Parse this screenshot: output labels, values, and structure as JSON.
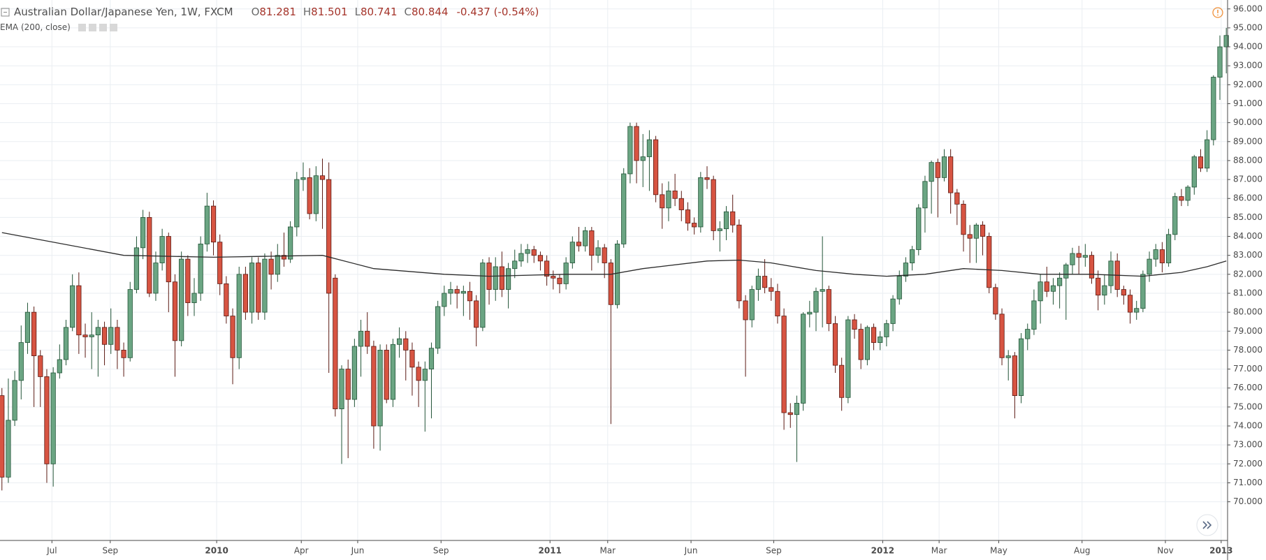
{
  "chart_data": {
    "type": "candlestick",
    "title": "Australian Dollar/Japanese Yen, 1W, FXCM",
    "ohlc_header": [
      {
        "label": "O",
        "value": "81.281"
      },
      {
        "label": "H",
        "value": "81.501"
      },
      {
        "label": "L",
        "value": "80.741"
      },
      {
        "label": "C",
        "value": "80.844"
      }
    ],
    "change": "-0.437 (-0.54%)",
    "up_color": "#6ba583",
    "up_border": "#225437",
    "down_color": "#d75442",
    "down_border": "#5b1a13",
    "xlim": [
      -0.3,
      191.2
    ],
    "ylim": [
      67.96,
      96.47
    ],
    "xticks": [
      {
        "value": 7.8,
        "label": "Jul"
      },
      {
        "value": 16.9,
        "label": "Sep"
      },
      {
        "value": 33.5,
        "label": "2010"
      },
      {
        "value": 46.7,
        "label": "Apr"
      },
      {
        "value": 55.5,
        "label": "Jun"
      },
      {
        "value": 68.5,
        "label": "Sep"
      },
      {
        "value": 85.5,
        "label": "2011"
      },
      {
        "value": 94.5,
        "label": "Mar"
      },
      {
        "value": 107.5,
        "label": "Jun"
      },
      {
        "value": 120.4,
        "label": "Sep"
      },
      {
        "value": 137.4,
        "label": "2012"
      },
      {
        "value": 146.2,
        "label": "Mar"
      },
      {
        "value": 155.5,
        "label": "May"
      },
      {
        "value": 168.5,
        "label": "Aug"
      },
      {
        "value": 181.5,
        "label": "Nov"
      },
      {
        "value": 190.2,
        "label": "2013"
      }
    ],
    "yticks": [
      {
        "value": 70,
        "label": "70.000"
      },
      {
        "value": 71,
        "label": "71.000"
      },
      {
        "value": 72,
        "label": "72.000"
      },
      {
        "value": 73,
        "label": "73.000"
      },
      {
        "value": 74,
        "label": "74.000"
      },
      {
        "value": 75,
        "label": "75.000"
      },
      {
        "value": 76,
        "label": "76.000"
      },
      {
        "value": 77,
        "label": "77.000"
      },
      {
        "value": 78,
        "label": "78.000"
      },
      {
        "value": 79,
        "label": "79.000"
      },
      {
        "value": 80,
        "label": "80.000"
      },
      {
        "value": 81,
        "label": "81.000"
      },
      {
        "value": 82,
        "label": "82.000"
      },
      {
        "value": 83,
        "label": "83.000"
      },
      {
        "value": 84,
        "label": "84.000"
      },
      {
        "value": 85,
        "label": "85.000"
      },
      {
        "value": 86,
        "label": "86.000"
      },
      {
        "value": 87,
        "label": "87.000"
      },
      {
        "value": 88,
        "label": "88.000"
      },
      {
        "value": 89,
        "label": "89.000"
      },
      {
        "value": 90,
        "label": "90.000"
      },
      {
        "value": 91,
        "label": "91.000"
      },
      {
        "value": 92,
        "label": "92.000"
      },
      {
        "value": 93,
        "label": "93.000"
      },
      {
        "value": 94,
        "label": "94.000"
      },
      {
        "value": 95,
        "label": "95.000"
      },
      {
        "value": 96,
        "label": "96.000"
      }
    ],
    "grid": true,
    "ohlc": [
      [
        75.6,
        76.0,
        70.6,
        71.3
      ],
      [
        71.3,
        76.5,
        71.0,
        74.3
      ],
      [
        74.3,
        76.9,
        74.0,
        76.4
      ],
      [
        76.4,
        79.3,
        75.4,
        78.4
      ],
      [
        78.4,
        80.5,
        77.8,
        80.0
      ],
      [
        80.0,
        80.3,
        75.0,
        77.7
      ],
      [
        77.7,
        78.0,
        75.0,
        76.6
      ],
      [
        76.6,
        77.0,
        71.0,
        72.0
      ],
      [
        72.0,
        77.1,
        70.8,
        76.8
      ],
      [
        76.8,
        78.3,
        76.5,
        77.5
      ],
      [
        77.5,
        79.6,
        77.2,
        79.2
      ],
      [
        79.2,
        82.0,
        79.0,
        81.4
      ],
      [
        81.4,
        82.1,
        77.8,
        78.8
      ],
      [
        78.8,
        79.4,
        77.6,
        78.7
      ],
      [
        78.7,
        80.0,
        77.0,
        78.8
      ],
      [
        78.8,
        79.6,
        76.6,
        79.2
      ],
      [
        79.2,
        79.5,
        77.2,
        78.3
      ],
      [
        78.3,
        80.2,
        77.8,
        79.2
      ],
      [
        79.2,
        79.6,
        77.0,
        78.0
      ],
      [
        78.0,
        78.4,
        76.6,
        77.6
      ],
      [
        77.6,
        81.6,
        77.4,
        81.2
      ],
      [
        81.2,
        84.0,
        81.0,
        83.4
      ],
      [
        83.4,
        85.4,
        82.8,
        85.0
      ],
      [
        85.0,
        85.3,
        80.8,
        81.0
      ],
      [
        81.0,
        83.2,
        80.6,
        82.6
      ],
      [
        82.6,
        84.4,
        82.2,
        84.0
      ],
      [
        84.0,
        84.2,
        80.0,
        81.6
      ],
      [
        81.6,
        82.0,
        76.6,
        78.5
      ],
      [
        78.5,
        83.2,
        78.2,
        82.8
      ],
      [
        82.8,
        83.0,
        79.8,
        80.5
      ],
      [
        80.5,
        81.8,
        79.8,
        81.0
      ],
      [
        81.0,
        84.0,
        80.6,
        83.6
      ],
      [
        83.6,
        86.3,
        83.2,
        85.6
      ],
      [
        85.6,
        85.9,
        83.0,
        83.7
      ],
      [
        83.7,
        84.1,
        80.9,
        81.5
      ],
      [
        81.5,
        81.9,
        79.4,
        79.8
      ],
      [
        79.8,
        80.2,
        76.2,
        77.6
      ],
      [
        77.6,
        82.4,
        77.0,
        82.0
      ],
      [
        82.0,
        82.4,
        79.6,
        80.0
      ],
      [
        80.0,
        82.9,
        79.4,
        82.6
      ],
      [
        82.6,
        82.9,
        79.6,
        80.0
      ],
      [
        80.0,
        83.1,
        79.6,
        82.8
      ],
      [
        82.8,
        83.2,
        81.2,
        82.0
      ],
      [
        82.0,
        83.6,
        81.6,
        83.0
      ],
      [
        83.0,
        84.2,
        82.4,
        82.8
      ],
      [
        82.8,
        84.8,
        82.6,
        84.5
      ],
      [
        84.5,
        87.4,
        84.0,
        87.0
      ],
      [
        87.0,
        87.9,
        86.4,
        87.1
      ],
      [
        87.1,
        87.6,
        84.9,
        85.2
      ],
      [
        85.2,
        87.7,
        84.8,
        87.2
      ],
      [
        87.2,
        88.1,
        84.4,
        87.0
      ],
      [
        87.0,
        87.9,
        76.8,
        81.0
      ],
      [
        81.8,
        82.0,
        74.5,
        74.9
      ],
      [
        74.9,
        77.2,
        72.0,
        77.0
      ],
      [
        77.0,
        77.5,
        72.3,
        75.4
      ],
      [
        75.4,
        78.6,
        75.0,
        78.2
      ],
      [
        78.2,
        79.6,
        76.6,
        79.0
      ],
      [
        79.0,
        80.0,
        77.8,
        78.2
      ],
      [
        78.2,
        78.5,
        72.8,
        74.0
      ],
      [
        74.0,
        78.3,
        72.7,
        78.0
      ],
      [
        78.0,
        78.3,
        75.2,
        75.4
      ],
      [
        75.4,
        78.6,
        75.0,
        78.3
      ],
      [
        78.3,
        79.2,
        77.6,
        78.6
      ],
      [
        78.6,
        79.0,
        76.4,
        78.0
      ],
      [
        78.0,
        78.4,
        75.6,
        77.1
      ],
      [
        77.1,
        77.4,
        75.0,
        76.4
      ],
      [
        76.4,
        77.4,
        73.7,
        77.0
      ],
      [
        77.0,
        78.4,
        74.4,
        78.1
      ],
      [
        78.1,
        80.6,
        77.8,
        80.3
      ],
      [
        80.3,
        81.4,
        79.8,
        81.0
      ],
      [
        81.0,
        81.6,
        80.4,
        81.2
      ],
      [
        81.2,
        81.4,
        80.2,
        81.0
      ],
      [
        81.0,
        81.4,
        79.8,
        81.1
      ],
      [
        81.1,
        81.6,
        79.6,
        80.6
      ],
      [
        80.6,
        80.9,
        78.2,
        79.2
      ],
      [
        79.2,
        82.8,
        79.0,
        82.6
      ],
      [
        82.6,
        82.9,
        80.4,
        81.2
      ],
      [
        81.2,
        82.9,
        80.6,
        82.4
      ],
      [
        82.4,
        83.2,
        80.8,
        81.2
      ],
      [
        81.2,
        82.6,
        80.2,
        82.3
      ],
      [
        82.3,
        83.3,
        81.8,
        82.7
      ],
      [
        82.7,
        83.6,
        82.4,
        83.1
      ],
      [
        83.1,
        83.6,
        82.6,
        83.3
      ],
      [
        83.3,
        83.5,
        82.6,
        83.0
      ],
      [
        83.0,
        83.2,
        82.2,
        82.7
      ],
      [
        82.7,
        83.0,
        81.4,
        81.9
      ],
      [
        81.9,
        82.2,
        81.2,
        81.8
      ],
      [
        81.8,
        82.0,
        81.0,
        81.5
      ],
      [
        81.5,
        82.9,
        81.2,
        82.6
      ],
      [
        82.6,
        84.0,
        82.3,
        83.7
      ],
      [
        83.7,
        84.5,
        83.2,
        83.5
      ],
      [
        83.5,
        84.5,
        83.2,
        84.3
      ],
      [
        84.3,
        84.5,
        82.2,
        83.0
      ],
      [
        83.0,
        83.8,
        82.6,
        83.4
      ],
      [
        83.4,
        83.6,
        81.8,
        82.6
      ],
      [
        82.6,
        82.8,
        74.1,
        80.4
      ],
      [
        80.4,
        83.8,
        80.2,
        83.6
      ],
      [
        83.6,
        87.6,
        83.4,
        87.3
      ],
      [
        87.3,
        90.0,
        86.8,
        89.8
      ],
      [
        89.8,
        90.0,
        86.8,
        88.0
      ],
      [
        88.0,
        89.4,
        86.6,
        88.2
      ],
      [
        88.2,
        89.6,
        86.4,
        89.1
      ],
      [
        89.1,
        89.3,
        85.8,
        86.2
      ],
      [
        86.2,
        86.8,
        84.4,
        85.5
      ],
      [
        85.5,
        86.9,
        84.8,
        86.4
      ],
      [
        86.4,
        87.3,
        85.6,
        86.0
      ],
      [
        86.0,
        86.4,
        84.8,
        85.4
      ],
      [
        85.4,
        85.8,
        84.3,
        84.7
      ],
      [
        84.7,
        85.0,
        84.1,
        84.5
      ],
      [
        84.5,
        87.4,
        84.2,
        87.1
      ],
      [
        87.1,
        87.7,
        86.5,
        87.0
      ],
      [
        87.0,
        87.2,
        83.8,
        84.3
      ],
      [
        84.3,
        84.8,
        83.2,
        84.4
      ],
      [
        84.4,
        85.6,
        83.8,
        85.3
      ],
      [
        85.3,
        86.2,
        84.2,
        84.6
      ],
      [
        84.6,
        84.9,
        80.2,
        80.6
      ],
      [
        80.6,
        80.9,
        76.6,
        79.6
      ],
      [
        79.6,
        81.4,
        79.2,
        81.2
      ],
      [
        81.2,
        82.3,
        80.6,
        81.9
      ],
      [
        81.9,
        82.8,
        81.0,
        81.3
      ],
      [
        81.3,
        81.8,
        80.6,
        81.1
      ],
      [
        81.1,
        81.5,
        79.4,
        79.8
      ],
      [
        79.8,
        80.2,
        73.8,
        74.7
      ],
      [
        74.7,
        75.2,
        73.9,
        74.6
      ],
      [
        74.6,
        75.6,
        72.1,
        75.2
      ],
      [
        75.2,
        80.0,
        74.8,
        79.9
      ],
      [
        79.9,
        80.6,
        79.2,
        80.0
      ],
      [
        80.0,
        81.3,
        79.0,
        81.1
      ],
      [
        81.1,
        84.0,
        79.2,
        81.2
      ],
      [
        81.2,
        81.4,
        79.0,
        79.4
      ],
      [
        79.4,
        79.8,
        76.8,
        77.2
      ],
      [
        77.2,
        77.6,
        74.8,
        75.5
      ],
      [
        75.5,
        79.8,
        75.2,
        79.6
      ],
      [
        79.6,
        79.9,
        78.6,
        79.1
      ],
      [
        79.1,
        79.4,
        77.0,
        77.5
      ],
      [
        77.5,
        79.3,
        77.2,
        79.2
      ],
      [
        79.2,
        79.4,
        78.0,
        78.4
      ],
      [
        78.4,
        79.0,
        78.0,
        78.7
      ],
      [
        78.7,
        79.6,
        78.2,
        79.4
      ],
      [
        79.4,
        80.9,
        79.0,
        80.7
      ],
      [
        80.7,
        82.2,
        80.4,
        81.9
      ],
      [
        81.9,
        82.9,
        81.6,
        82.6
      ],
      [
        82.6,
        83.5,
        82.2,
        83.3
      ],
      [
        83.3,
        85.7,
        83.0,
        85.5
      ],
      [
        85.5,
        87.2,
        84.2,
        86.9
      ],
      [
        86.9,
        88.0,
        85.2,
        87.9
      ],
      [
        87.9,
        88.1,
        85.0,
        87.1
      ],
      [
        87.1,
        88.6,
        86.9,
        88.2
      ],
      [
        88.2,
        88.6,
        85.2,
        86.3
      ],
      [
        86.3,
        86.5,
        84.6,
        85.7
      ],
      [
        85.7,
        85.9,
        83.2,
        84.1
      ],
      [
        84.1,
        84.6,
        82.6,
        83.9
      ],
      [
        83.9,
        84.7,
        82.6,
        84.6
      ],
      [
        84.6,
        84.8,
        83.0,
        84.0
      ],
      [
        84.0,
        84.2,
        81.0,
        81.3
      ],
      [
        81.3,
        81.5,
        79.6,
        79.9
      ],
      [
        79.9,
        80.2,
        77.2,
        77.6
      ],
      [
        77.6,
        78.0,
        76.4,
        77.7
      ],
      [
        77.7,
        77.9,
        74.4,
        75.6
      ],
      [
        75.6,
        78.9,
        75.2,
        78.6
      ],
      [
        78.6,
        79.4,
        78.0,
        79.1
      ],
      [
        79.1,
        81.2,
        78.8,
        80.6
      ],
      [
        80.6,
        82.0,
        79.4,
        81.6
      ],
      [
        81.6,
        82.4,
        80.8,
        81.1
      ],
      [
        81.1,
        81.8,
        80.4,
        81.4
      ],
      [
        81.4,
        82.1,
        80.2,
        81.8
      ],
      [
        81.8,
        82.6,
        79.6,
        82.5
      ],
      [
        82.5,
        83.4,
        82.0,
        83.1
      ],
      [
        83.1,
        83.5,
        82.0,
        82.9
      ],
      [
        82.9,
        83.6,
        82.4,
        83.0
      ],
      [
        83.0,
        83.2,
        81.5,
        81.8
      ],
      [
        81.8,
        82.2,
        80.1,
        80.9
      ],
      [
        80.9,
        82.0,
        80.4,
        81.4
      ],
      [
        81.4,
        83.2,
        81.0,
        82.7
      ],
      [
        82.7,
        83.1,
        80.8,
        81.2
      ],
      [
        81.2,
        81.4,
        80.4,
        80.9
      ],
      [
        80.9,
        81.2,
        79.4,
        80.0
      ],
      [
        80.0,
        80.6,
        79.6,
        80.2
      ],
      [
        80.2,
        82.2,
        80.0,
        82.0
      ],
      [
        82.0,
        83.2,
        81.6,
        82.8
      ],
      [
        82.8,
        83.6,
        82.4,
        83.3
      ],
      [
        83.3,
        83.7,
        82.1,
        82.6
      ],
      [
        82.6,
        84.4,
        82.4,
        84.1
      ],
      [
        84.1,
        86.3,
        83.8,
        86.1
      ],
      [
        86.1,
        86.5,
        85.6,
        85.9
      ],
      [
        85.9,
        86.7,
        85.6,
        86.6
      ],
      [
        86.6,
        88.3,
        86.2,
        88.2
      ],
      [
        88.2,
        88.6,
        87.4,
        87.6
      ],
      [
        87.6,
        89.6,
        87.4,
        89.1
      ],
      [
        89.1,
        92.5,
        88.8,
        92.4
      ],
      [
        92.4,
        94.6,
        91.2,
        94.0
      ],
      [
        94.0,
        95.0,
        92.6,
        94.6
      ]
    ],
    "ema": {
      "name": "EMA (200, close)",
      "color": "#2b2b2b",
      "x": [
        0,
        19,
        33,
        50,
        58,
        69,
        76,
        88,
        95,
        100,
        110,
        115,
        120,
        127,
        133,
        138,
        144,
        150,
        156,
        162,
        170,
        178,
        184,
        188,
        191
      ],
      "values": [
        84.2,
        83.0,
        82.9,
        83.0,
        82.3,
        82.0,
        81.9,
        82.0,
        82.0,
        82.3,
        82.7,
        82.75,
        82.6,
        82.2,
        82.0,
        81.9,
        82.0,
        82.3,
        82.2,
        82.0,
        82.0,
        81.9,
        82.1,
        82.4,
        82.7
      ]
    }
  }
}
